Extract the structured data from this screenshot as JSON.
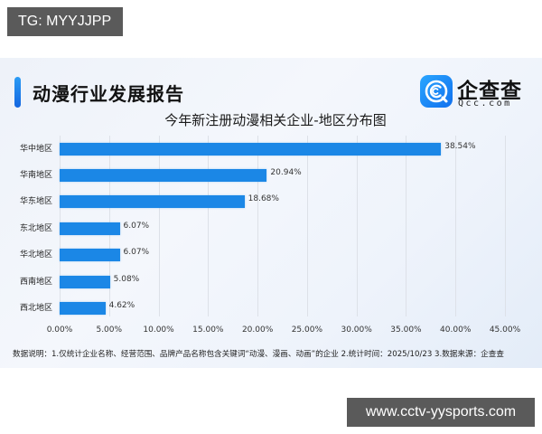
{
  "watermarks": {
    "top_left": "TG: MYYJJPP",
    "bottom_right": "www.cctv-yysports.com"
  },
  "header": {
    "title": "动漫行业发展报告",
    "logo": {
      "name": "企查查",
      "domain": "Qcc.com",
      "icon": "qcc-logo-icon"
    }
  },
  "colors": {
    "bar": "#1b87e6",
    "accent_bar": "#1466e0",
    "logo": "#1a8cf5"
  },
  "note": "数据说明：1.仅统计企业名称、经营范围、品牌产品名称包含关键词“动漫、漫画、动画”的企业 2.统计时间：2025/10/23 3.数据来源：企查查",
  "chart_data": {
    "type": "bar",
    "orientation": "horizontal",
    "title": "今年新注册动漫相关企业-地区分布图",
    "xlabel": "",
    "ylabel": "",
    "categories": [
      "华中地区",
      "华南地区",
      "华东地区",
      "东北地区",
      "华北地区",
      "西南地区",
      "西北地区"
    ],
    "values": [
      38.54,
      20.94,
      18.68,
      6.07,
      6.07,
      5.08,
      4.62
    ],
    "value_labels": [
      "38.54%",
      "20.94%",
      "18.68%",
      "6.07%",
      "6.07%",
      "5.08%",
      "4.62%"
    ],
    "xlim": [
      0,
      45
    ],
    "x_ticks": [
      "0.00%",
      "5.00%",
      "10.00%",
      "15.00%",
      "20.00%",
      "25.00%",
      "30.00%",
      "35.00%",
      "40.00%",
      "45.00%"
    ],
    "grid": "vertical",
    "legend": "none"
  }
}
